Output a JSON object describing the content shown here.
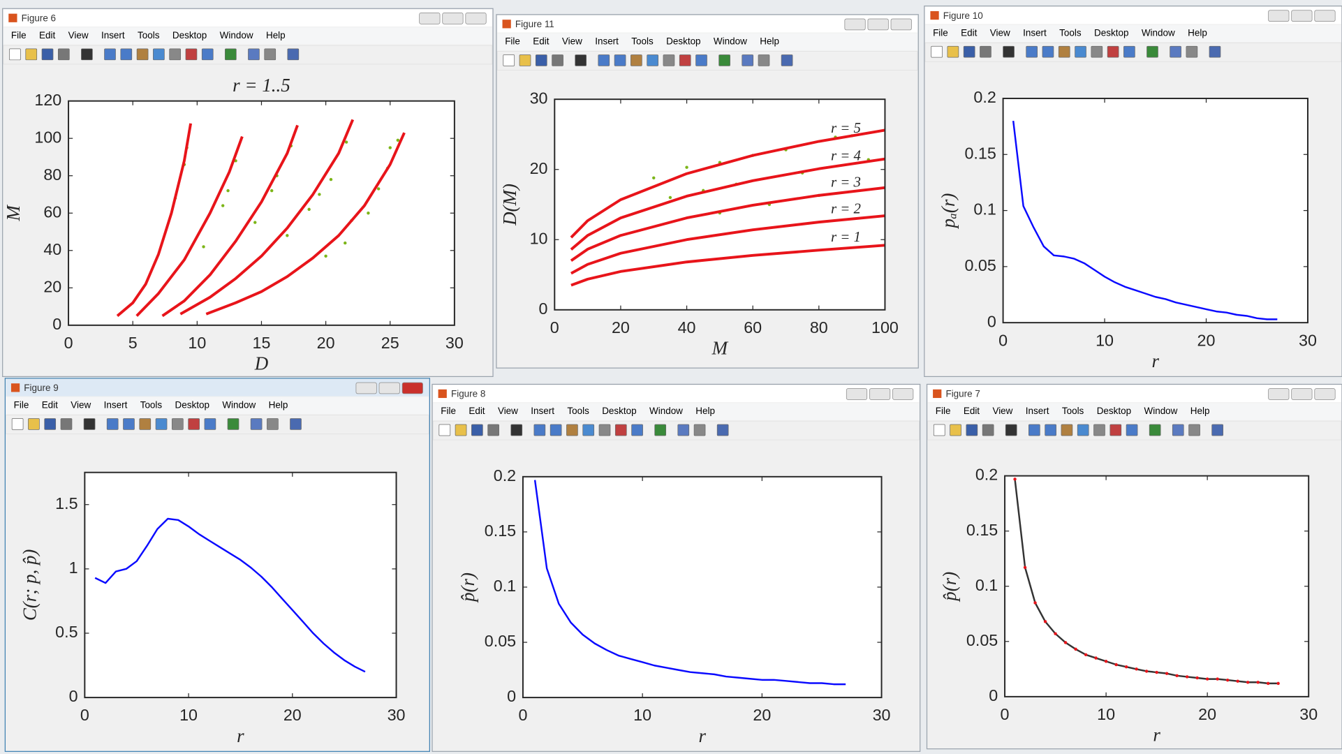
{
  "menu": [
    "File",
    "Edit",
    "View",
    "Insert",
    "Tools",
    "Desktop",
    "Window",
    "Help"
  ],
  "windows": [
    {
      "title": "Figure 6"
    },
    {
      "title": "Figure 11"
    },
    {
      "title": "Figure 10"
    },
    {
      "title": "Figure 9"
    },
    {
      "title": "Figure 8"
    },
    {
      "title": "Figure 7"
    }
  ],
  "chart_data": [
    {
      "type": "line",
      "title": "r = 1..5",
      "xlabel": "D",
      "ylabel": "M",
      "xlim": [
        0,
        30
      ],
      "xticks": [
        0,
        5,
        10,
        15,
        20,
        25,
        30
      ],
      "ylim": [
        0,
        120
      ],
      "yticks": [
        0,
        20,
        40,
        60,
        80,
        100,
        120
      ],
      "series": [
        {
          "color": "#7cb518",
          "line": false,
          "x": [
            9.2,
            9.0,
            8.3,
            12.4,
            13.0,
            12.0,
            10.5,
            16.2,
            15.8,
            17.3,
            14.5,
            19.5,
            20.4,
            21.6,
            18.7,
            17.0,
            22.0,
            24.1,
            25.0,
            23.3,
            24.8,
            25.6,
            21.5,
            20.0
          ],
          "values": [
            95,
            86,
            68,
            72,
            88,
            64,
            42,
            80,
            72,
            96,
            55,
            70,
            78,
            98,
            62,
            48,
            56,
            73,
            95,
            60,
            84,
            99,
            44,
            37
          ]
        },
        {
          "color": "#e8141a",
          "line": true,
          "x": [
            3.8,
            5,
            6,
            7,
            8,
            9,
            9.5
          ],
          "values": [
            5,
            12,
            22,
            38,
            60,
            88,
            108
          ]
        },
        {
          "color": "#e8141a",
          "line": true,
          "x": [
            5.3,
            7,
            9,
            11,
            12.5,
            13.5
          ],
          "values": [
            5,
            17,
            35,
            60,
            82,
            101
          ]
        },
        {
          "color": "#e8141a",
          "line": true,
          "x": [
            7.3,
            9,
            11,
            13,
            15,
            17,
            17.8
          ],
          "values": [
            5,
            13,
            27,
            45,
            66,
            92,
            107
          ]
        },
        {
          "color": "#e8141a",
          "line": true,
          "x": [
            8.7,
            11,
            13,
            15,
            17,
            19,
            21,
            22.1
          ],
          "values": [
            6,
            15,
            25,
            37,
            52,
            70,
            92,
            110
          ]
        },
        {
          "color": "#e8141a",
          "line": true,
          "x": [
            10.7,
            13,
            15,
            17,
            19,
            21,
            23,
            25,
            26.1
          ],
          "values": [
            6,
            12,
            18,
            26,
            36,
            48,
            64,
            86,
            103
          ]
        }
      ]
    },
    {
      "type": "line",
      "xlabel": "M",
      "ylabel": "D(M)",
      "xlim": [
        0,
        100
      ],
      "xticks": [
        0,
        20,
        40,
        60,
        80,
        100
      ],
      "ylim": [
        0,
        30
      ],
      "yticks": [
        0,
        10,
        20,
        30
      ],
      "series": [
        {
          "color": "#7cb518",
          "line": false,
          "x": [
            30,
            40,
            50,
            60,
            70,
            85,
            90,
            35,
            45,
            55,
            75,
            95,
            50,
            65,
            80
          ],
          "values": [
            18.8,
            20.3,
            21.0,
            22.0,
            22.8,
            24.6,
            24.8,
            16.0,
            17.0,
            17.9,
            19.5,
            21.4,
            13.8,
            15.0,
            16.3
          ]
        },
        {
          "color": "#e8141a",
          "line": true,
          "label": "r = 1",
          "x": [
            5,
            10,
            20,
            40,
            60,
            80,
            100
          ],
          "values": [
            3.5,
            4.37,
            5.46,
            6.82,
            7.75,
            8.5,
            9.2
          ]
        },
        {
          "color": "#e8141a",
          "line": true,
          "label": "r = 2",
          "x": [
            5,
            10,
            20,
            40,
            60,
            80,
            100
          ],
          "values": [
            5.2,
            6.47,
            8.06,
            10.0,
            11.4,
            12.5,
            13.4
          ]
        },
        {
          "color": "#e8141a",
          "line": true,
          "label": "r = 3",
          "x": [
            5,
            10,
            20,
            40,
            60,
            80,
            100
          ],
          "values": [
            7,
            8.63,
            10.6,
            13.1,
            14.9,
            16.3,
            17.4
          ]
        },
        {
          "color": "#e8141a",
          "line": true,
          "label": "r = 4",
          "x": [
            5,
            10,
            20,
            40,
            60,
            80,
            100
          ],
          "values": [
            8.6,
            10.6,
            13.1,
            16.2,
            18.4,
            20.1,
            21.5
          ]
        },
        {
          "color": "#e8141a",
          "line": true,
          "label": "r = 5",
          "x": [
            5,
            10,
            20,
            40,
            60,
            80,
            100
          ],
          "values": [
            10.3,
            12.7,
            15.7,
            19.4,
            22.0,
            24.0,
            25.6
          ]
        }
      ]
    },
    {
      "type": "line",
      "xlabel": "r",
      "ylabel": "pₐ(r)",
      "xlim": [
        0,
        30
      ],
      "xticks": [
        0,
        10,
        20,
        30
      ],
      "ylim": [
        0,
        0.2
      ],
      "yticks": [
        0,
        0.05,
        0.1,
        0.15,
        0.2
      ],
      "series": [
        {
          "color": "#0a0aff",
          "line": true,
          "x": [
            1,
            2,
            3,
            4,
            5,
            6,
            7,
            8,
            9,
            10,
            11,
            12,
            13,
            14,
            15,
            16,
            17,
            18,
            19,
            20,
            21,
            22,
            23,
            24,
            25,
            26,
            27
          ],
          "values": [
            0.18,
            0.104,
            0.085,
            0.068,
            0.06,
            0.059,
            0.057,
            0.053,
            0.047,
            0.041,
            0.036,
            0.032,
            0.029,
            0.026,
            0.023,
            0.021,
            0.018,
            0.016,
            0.014,
            0.012,
            0.01,
            0.009,
            0.007,
            0.006,
            0.004,
            0.003,
            0.003
          ]
        }
      ]
    },
    {
      "type": "line",
      "xlabel": "r",
      "ylabel": "C(r; p, p̂)",
      "xlim": [
        0,
        30
      ],
      "xticks": [
        0,
        10,
        20,
        30
      ],
      "ylim": [
        0,
        1.75
      ],
      "yticks": [
        0,
        0.5,
        1,
        1.5
      ],
      "series": [
        {
          "color": "#0a0aff",
          "line": true,
          "x": [
            1,
            2,
            3,
            4,
            5,
            6,
            7,
            8,
            9,
            10,
            11,
            12,
            13,
            14,
            15,
            16,
            17,
            18,
            19,
            20,
            21,
            22,
            23,
            24,
            25,
            26,
            27
          ],
          "values": [
            0.93,
            0.89,
            0.98,
            1.0,
            1.06,
            1.18,
            1.31,
            1.39,
            1.38,
            1.33,
            1.27,
            1.22,
            1.17,
            1.12,
            1.07,
            1.01,
            0.94,
            0.86,
            0.77,
            0.68,
            0.59,
            0.5,
            0.42,
            0.35,
            0.29,
            0.24,
            0.2
          ]
        }
      ]
    },
    {
      "type": "line",
      "xlabel": "r",
      "ylabel": "p̂(r)",
      "xlim": [
        0,
        30
      ],
      "xticks": [
        0,
        10,
        20,
        30
      ],
      "ylim": [
        0,
        0.2
      ],
      "yticks": [
        0,
        0.05,
        0.1,
        0.15,
        0.2
      ],
      "series": [
        {
          "color": "#0a0aff",
          "line": true,
          "x": [
            1,
            2,
            3,
            4,
            5,
            6,
            7,
            8,
            9,
            10,
            11,
            12,
            13,
            14,
            15,
            16,
            17,
            18,
            19,
            20,
            21,
            22,
            23,
            24,
            25,
            26,
            27
          ],
          "values": [
            0.197,
            0.117,
            0.085,
            0.068,
            0.057,
            0.049,
            0.043,
            0.038,
            0.035,
            0.032,
            0.029,
            0.027,
            0.025,
            0.023,
            0.022,
            0.021,
            0.019,
            0.018,
            0.017,
            0.016,
            0.016,
            0.015,
            0.014,
            0.013,
            0.013,
            0.012,
            0.012
          ]
        }
      ]
    },
    {
      "type": "line",
      "xlabel": "r",
      "ylabel": "p̂(r)",
      "xlim": [
        0,
        30
      ],
      "xticks": [
        0,
        10,
        20,
        30
      ],
      "ylim": [
        0,
        0.2
      ],
      "yticks": [
        0,
        0.05,
        0.1,
        0.15,
        0.2
      ],
      "series": [
        {
          "color": "#333333",
          "line": true,
          "x": [
            1,
            2,
            3,
            4,
            5,
            6,
            7,
            8,
            9,
            10,
            11,
            12,
            13,
            14,
            15,
            16,
            17,
            18,
            19,
            20,
            21,
            22,
            23,
            24,
            25,
            26,
            27
          ],
          "values": [
            0.197,
            0.117,
            0.085,
            0.068,
            0.057,
            0.049,
            0.043,
            0.038,
            0.035,
            0.032,
            0.029,
            0.027,
            0.025,
            0.023,
            0.022,
            0.021,
            0.019,
            0.018,
            0.017,
            0.016,
            0.016,
            0.015,
            0.014,
            0.013,
            0.013,
            0.012,
            0.012
          ]
        },
        {
          "color": "#e8141a",
          "line": false,
          "x": [
            1,
            2,
            3,
            4,
            5,
            6,
            7,
            8,
            9,
            10,
            11,
            12,
            13,
            14,
            15,
            16,
            17,
            18,
            19,
            20,
            21,
            22,
            23,
            24,
            25,
            26,
            27
          ],
          "values": [
            0.197,
            0.117,
            0.085,
            0.068,
            0.057,
            0.049,
            0.043,
            0.038,
            0.035,
            0.032,
            0.029,
            0.027,
            0.025,
            0.023,
            0.022,
            0.021,
            0.019,
            0.018,
            0.017,
            0.016,
            0.016,
            0.015,
            0.014,
            0.013,
            0.013,
            0.012,
            0.012
          ]
        }
      ]
    }
  ]
}
